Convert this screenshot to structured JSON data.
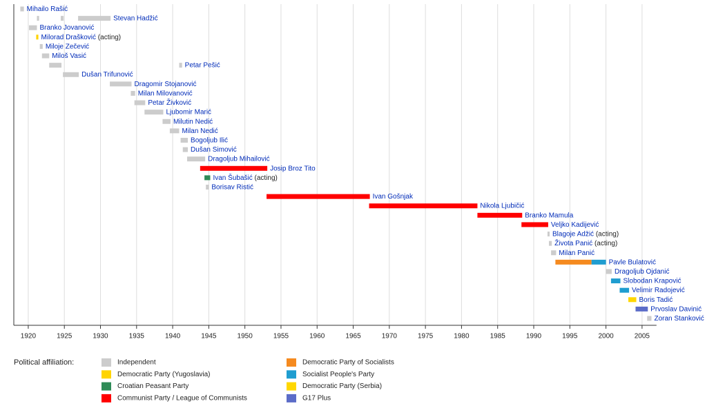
{
  "chart_data": {
    "type": "timeline",
    "xlim": [
      1918,
      2007
    ],
    "xticks": [
      1920,
      1925,
      1930,
      1935,
      1940,
      1945,
      1950,
      1955,
      1960,
      1965,
      1970,
      1975,
      1980,
      1985,
      1990,
      1995,
      2000,
      2005
    ],
    "grid": true,
    "legend_title": "Political affiliation:",
    "parties": [
      {
        "name": "Independent",
        "color": "#cccccc"
      },
      {
        "name": "Democratic Party (Yugoslavia)",
        "color": "#ffd400"
      },
      {
        "name": "Croatian Peasant Party",
        "color": "#2e8b57"
      },
      {
        "name": "Communist Party / League of Communists",
        "color": "#ff0000"
      },
      {
        "name": "Democratic Party of Socialists",
        "color": "#f58a1f"
      },
      {
        "name": "Socialist People's Party",
        "color": "#1f9dd0"
      },
      {
        "name": "Democratic Party (Serbia)",
        "color": "#ffd700"
      },
      {
        "name": "G17 Plus",
        "color": "#5b6cc8"
      }
    ],
    "rows": [
      {
        "name": "Mihailo Rašić",
        "segments": [
          {
            "start": 1918.9,
            "end": 1919.4,
            "party": "Independent"
          }
        ]
      },
      {
        "name": "Stevan Hadžić",
        "segments": [
          {
            "start": 1921.2,
            "end": 1921.5,
            "party": "Independent"
          },
          {
            "start": 1924.5,
            "end": 1924.9,
            "party": "Independent"
          },
          {
            "start": 1926.9,
            "end": 1931.4,
            "party": "Independent"
          }
        ]
      },
      {
        "name": "Branko Jovanović",
        "segments": [
          {
            "start": 1920.1,
            "end": 1921.2,
            "party": "Independent"
          }
        ]
      },
      {
        "name": "Milorad Drašković",
        "note": "(acting)",
        "segments": [
          {
            "start": 1921.1,
            "end": 1921.4,
            "party": "Democratic Party (Yugoslavia)"
          }
        ]
      },
      {
        "name": "Miloje Zečević",
        "segments": [
          {
            "start": 1921.6,
            "end": 1922.0,
            "party": "Independent"
          }
        ]
      },
      {
        "name": "Miloš Vasić",
        "segments": [
          {
            "start": 1921.9,
            "end": 1922.9,
            "party": "Independent"
          }
        ]
      },
      {
        "name": "Petar Pešić",
        "segments": [
          {
            "start": 1922.9,
            "end": 1924.6,
            "party": "Independent"
          },
          {
            "start": 1940.9,
            "end": 1941.3,
            "party": "Independent"
          }
        ]
      },
      {
        "name": "Dušan Trifunović",
        "segments": [
          {
            "start": 1924.8,
            "end": 1927.0,
            "party": "Independent"
          }
        ]
      },
      {
        "name": "Dragomir Stojanović",
        "segments": [
          {
            "start": 1931.3,
            "end": 1934.3,
            "party": "Independent"
          }
        ]
      },
      {
        "name": "Milan Milovanović",
        "segments": [
          {
            "start": 1934.2,
            "end": 1934.8,
            "party": "Independent"
          }
        ]
      },
      {
        "name": "Petar Živković",
        "segments": [
          {
            "start": 1934.7,
            "end": 1936.2,
            "party": "Independent"
          }
        ]
      },
      {
        "name": "Ljubomir Marić",
        "segments": [
          {
            "start": 1936.1,
            "end": 1938.7,
            "party": "Independent"
          }
        ]
      },
      {
        "name": "Milutin Nedić",
        "segments": [
          {
            "start": 1938.6,
            "end": 1939.7,
            "party": "Independent"
          }
        ]
      },
      {
        "name": "Milan Nedić",
        "segments": [
          {
            "start": 1939.6,
            "end": 1940.9,
            "party": "Independent"
          }
        ]
      },
      {
        "name": "Bogoljub Ilić",
        "segments": [
          {
            "start": 1941.1,
            "end": 1942.1,
            "party": "Independent"
          }
        ]
      },
      {
        "name": "Dušan Simović",
        "segments": [
          {
            "start": 1941.4,
            "end": 1942.1,
            "party": "Independent"
          }
        ]
      },
      {
        "name": "Dragoljub Mihailović",
        "segments": [
          {
            "start": 1942.0,
            "end": 1944.5,
            "party": "Independent"
          }
        ]
      },
      {
        "name": "Josip Broz Tito",
        "segments": [
          {
            "start": 1943.8,
            "end": 1953.1,
            "party": "Communist Party / League of Communists"
          }
        ]
      },
      {
        "name": "Ivan Šubašić",
        "note": "(acting)",
        "segments": [
          {
            "start": 1944.4,
            "end": 1945.2,
            "party": "Croatian Peasant Party"
          }
        ]
      },
      {
        "name": "Borisav Ristić",
        "segments": [
          {
            "start": 1944.6,
            "end": 1945.0,
            "party": "Independent"
          }
        ]
      },
      {
        "name": "Ivan Gošnjak",
        "segments": [
          {
            "start": 1953.0,
            "end": 1967.3,
            "party": "Communist Party / League of Communists"
          }
        ]
      },
      {
        "name": "Nikola Ljubičić",
        "segments": [
          {
            "start": 1967.2,
            "end": 1982.2,
            "party": "Communist Party / League of Communists"
          }
        ]
      },
      {
        "name": "Branko Mamula",
        "segments": [
          {
            "start": 1982.2,
            "end": 1988.4,
            "party": "Communist Party / League of Communists"
          }
        ]
      },
      {
        "name": "Veljko Kadijević",
        "segments": [
          {
            "start": 1988.3,
            "end": 1992.0,
            "party": "Communist Party / League of Communists"
          }
        ]
      },
      {
        "name": "Blagoje Adžić",
        "note": "(acting)",
        "segments": [
          {
            "start": 1991.9,
            "end": 1992.2,
            "party": "Independent"
          }
        ]
      },
      {
        "name": "Života Panić",
        "note": "(acting)",
        "segments": [
          {
            "start": 1992.1,
            "end": 1992.5,
            "party": "Independent"
          }
        ]
      },
      {
        "name": "Milan Panić",
        "segments": [
          {
            "start": 1992.4,
            "end": 1993.1,
            "party": "Independent"
          }
        ]
      },
      {
        "name": "Pavle Bulatović",
        "segments": [
          {
            "start": 1993.0,
            "end": 1998.0,
            "party": "Democratic Party of Socialists"
          },
          {
            "start": 1998.0,
            "end": 2000.0,
            "party": "Socialist People's Party"
          }
        ]
      },
      {
        "name": "Dragoljub Ojdanić",
        "segments": [
          {
            "start": 2000.0,
            "end": 2000.8,
            "party": "Independent"
          }
        ]
      },
      {
        "name": "Slobodan Krapović",
        "segments": [
          {
            "start": 2000.7,
            "end": 2002.0,
            "party": "Socialist People's Party"
          }
        ]
      },
      {
        "name": "Velimir Radojević",
        "segments": [
          {
            "start": 2001.9,
            "end": 2003.2,
            "party": "Socialist People's Party"
          }
        ]
      },
      {
        "name": "Boris Tadić",
        "segments": [
          {
            "start": 2003.1,
            "end": 2004.2,
            "party": "Democratic Party (Serbia)"
          }
        ]
      },
      {
        "name": "Prvoslav Davinić",
        "segments": [
          {
            "start": 2004.1,
            "end": 2005.8,
            "party": "G17 Plus"
          }
        ]
      },
      {
        "name": "Zoran Stanković",
        "segments": [
          {
            "start": 2005.7,
            "end": 2006.3,
            "party": "Independent"
          }
        ]
      }
    ]
  }
}
